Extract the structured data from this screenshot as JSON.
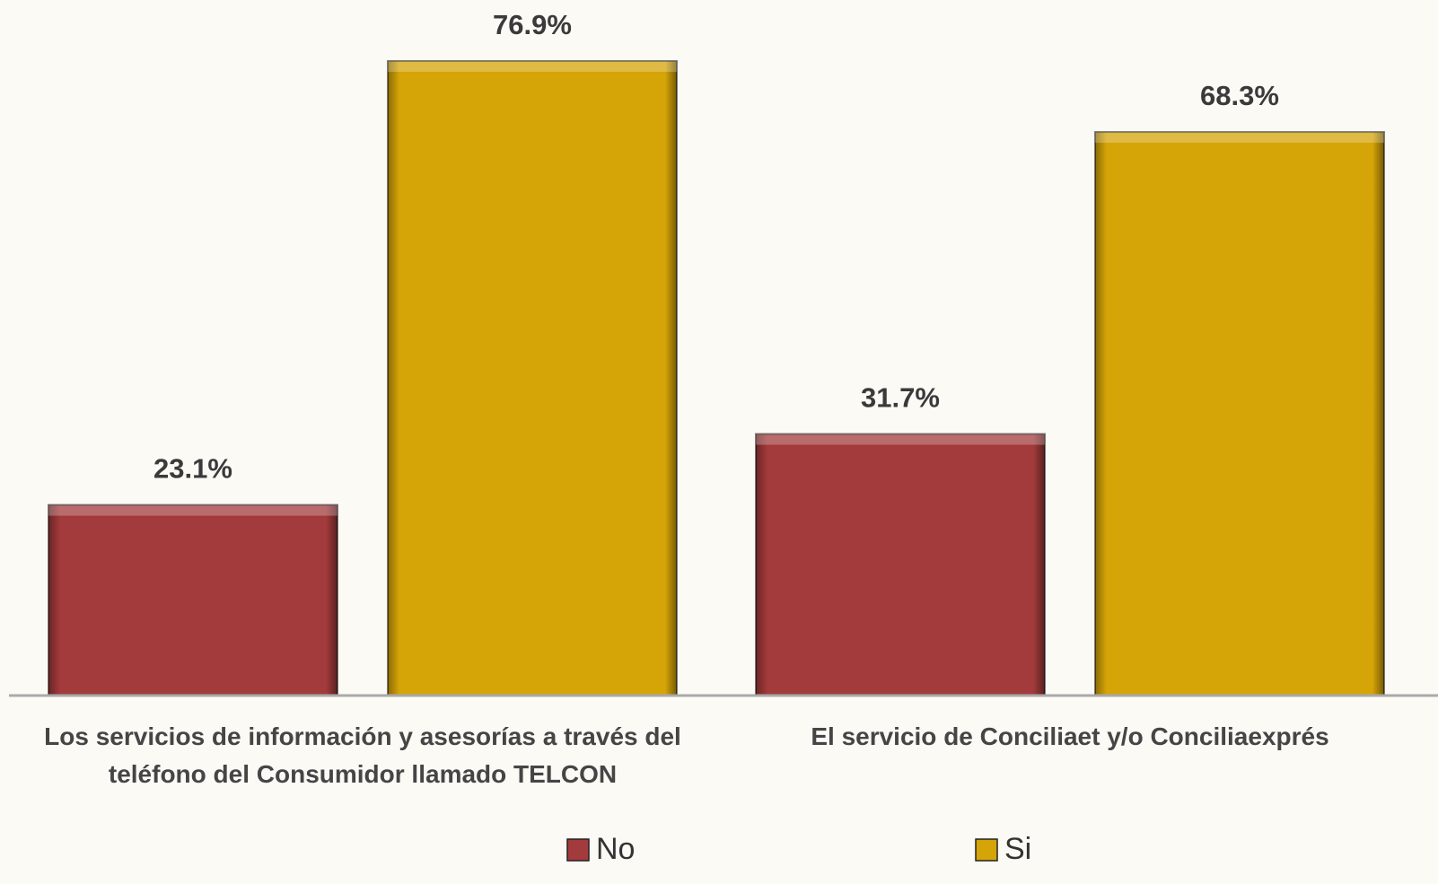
{
  "chart_data": {
    "type": "bar",
    "categories": [
      "Los servicios de información y asesorías a través del teléfono del Consumidor llamado TELCON",
      "El servicio de Conciliaet y/o Conciliaexprés"
    ],
    "series": [
      {
        "name": "No",
        "color": "#a33a3b",
        "values": [
          23.1,
          31.7
        ],
        "value_labels": [
          "23.1%",
          "31.7%"
        ]
      },
      {
        "name": "Si",
        "color": "#d5a407",
        "values": [
          76.9,
          68.3
        ],
        "value_labels": [
          "76.9%",
          "68.3%"
        ]
      }
    ],
    "legend": "bottom"
  }
}
